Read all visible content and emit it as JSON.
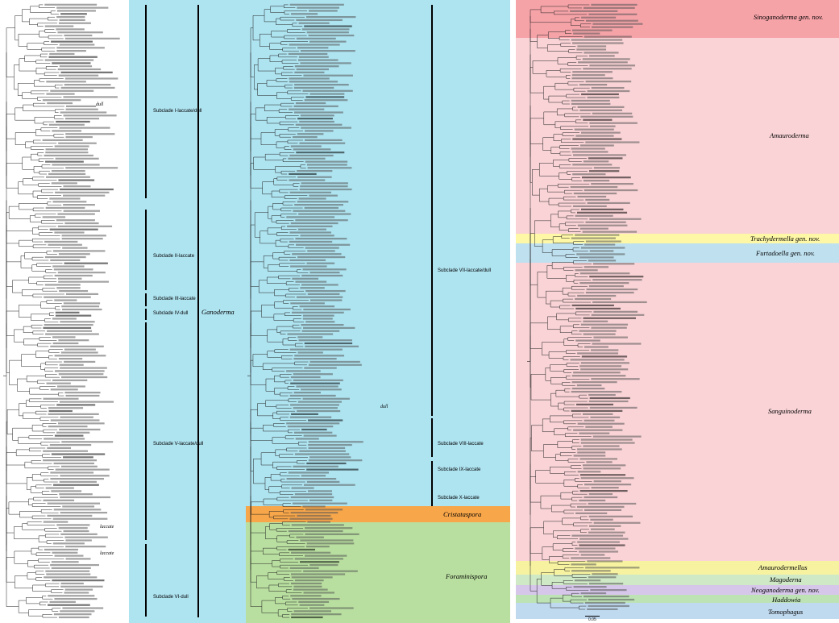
{
  "panels": [
    {
      "id": "left",
      "bands": [
        {
          "name": "ganoderma-left",
          "color": "#aee3f0"
        }
      ],
      "subclades": [
        {
          "label": "Subclade I-laccate/dull"
        },
        {
          "label": "Subclade II-laccate"
        },
        {
          "label": "Subclade III-laccate"
        },
        {
          "label": "Subclade IV-dull"
        },
        {
          "label": "Subclade V-laccate/dull"
        },
        {
          "label": "Subclade VI-dull"
        }
      ],
      "genus_label": "Ganoderma",
      "notes": [
        "dull",
        "laccate",
        "laccate"
      ]
    },
    {
      "id": "middle",
      "bands": [
        {
          "name": "ganoderma-middle",
          "color": "#aee3f0"
        },
        {
          "name": "cristataspora",
          "color": "#f7a64a"
        },
        {
          "name": "foraminispora",
          "color": "#b9dfa0"
        }
      ],
      "subclades": [
        {
          "label": "Subclade VII-laccate/dull"
        },
        {
          "label": "Subclade VIII-laccate"
        },
        {
          "label": "Subclade IX-laccate"
        },
        {
          "label": "Subclade X-laccate"
        }
      ],
      "genera": [
        {
          "label": "Cristataspora"
        },
        {
          "label": "Foraminispora"
        }
      ],
      "notes": [
        "dull"
      ]
    },
    {
      "id": "right",
      "genera": [
        {
          "label": "Sinoganoderma gen. nov.",
          "color": "#f6a3a8"
        },
        {
          "label": "Amauroderma",
          "color": "#f9d3d6"
        },
        {
          "label": "Trachydermella gen. nov.",
          "color": "#fdf7a6"
        },
        {
          "label": "Furtadoella gen. nov.",
          "color": "#bfe0ef"
        },
        {
          "label": "Sanguinoderma",
          "color": "#f9d3d6"
        },
        {
          "label": "Amaurodermellus",
          "color": "#f6f2a0"
        },
        {
          "label": "Magoderna",
          "color": "#cfe8c5"
        },
        {
          "label": "Neoganoderma gen. nov.",
          "color": "#d6c6ea"
        },
        {
          "label": "Haddowia",
          "color": "#bde3b5"
        },
        {
          "label": "Tomophagus",
          "color": "#bfd9ef"
        }
      ],
      "scale": "0.05"
    }
  ]
}
